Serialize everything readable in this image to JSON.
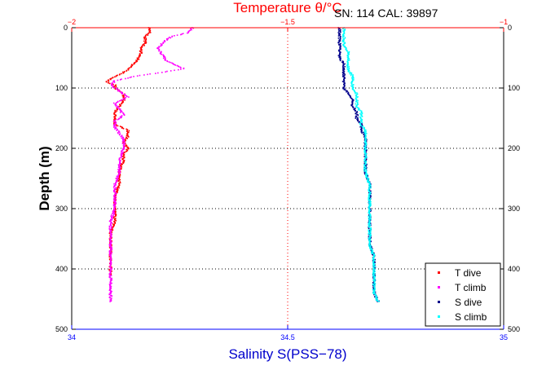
{
  "chart_data": {
    "type": "scatter",
    "title_top": "Temperature θ/°C",
    "info": "SN: 114  CAL: 39897",
    "ylabel": "Depth (m)",
    "xlabel_bottom": "Salinity S(PSS−78)",
    "y_range": [
      0,
      500
    ],
    "y_inverted": true,
    "y_ticks": [
      "0",
      "100",
      "200",
      "300",
      "400",
      "500"
    ],
    "y_tick_values": [
      0,
      100,
      200,
      300,
      400,
      500
    ],
    "x_top_range": [
      -2,
      -1
    ],
    "x_top_ticks": [
      "−2",
      "−1.5",
      "−1"
    ],
    "x_top_tick_values": [
      -2,
      -1.5,
      -1
    ],
    "x_bottom_range": [
      34,
      35
    ],
    "x_bottom_ticks": [
      "34",
      "34.5",
      "35"
    ],
    "x_bottom_tick_values": [
      34,
      34.5,
      35
    ],
    "grid": true,
    "legend_position": "bottom-right",
    "colors": {
      "t_dive": "#ff0000",
      "t_climb": "#ff00ff",
      "s_dive": "#00008b",
      "s_climb": "#00ffff",
      "top_axis": "#ff0000",
      "bottom_axis": "#0000ff"
    },
    "series": [
      {
        "name": "T dive",
        "axis": "top",
        "color": "#ff0000",
        "points": [
          [
            0,
            -1.82
          ],
          [
            8,
            -1.82
          ],
          [
            15,
            -1.83
          ],
          [
            25,
            -1.83
          ],
          [
            35,
            -1.84
          ],
          [
            45,
            -1.84
          ],
          [
            55,
            -1.85
          ],
          [
            62,
            -1.86
          ],
          [
            70,
            -1.87
          ],
          [
            78,
            -1.89
          ],
          [
            85,
            -1.91
          ],
          [
            90,
            -1.92
          ],
          [
            95,
            -1.9
          ],
          [
            100,
            -1.9
          ],
          [
            110,
            -1.88
          ],
          [
            120,
            -1.88
          ],
          [
            130,
            -1.89
          ],
          [
            140,
            -1.9
          ],
          [
            150,
            -1.9
          ],
          [
            160,
            -1.9
          ],
          [
            170,
            -1.87
          ],
          [
            180,
            -1.87
          ],
          [
            190,
            -1.88
          ],
          [
            200,
            -1.87
          ],
          [
            210,
            -1.88
          ],
          [
            220,
            -1.88
          ],
          [
            240,
            -1.89
          ],
          [
            260,
            -1.89
          ],
          [
            280,
            -1.9
          ],
          [
            300,
            -1.9
          ],
          [
            320,
            -1.9
          ],
          [
            340,
            -1.91
          ],
          [
            360,
            -1.91
          ],
          [
            380,
            -1.91
          ],
          [
            400,
            -1.91
          ],
          [
            410,
            -1.91
          ]
        ]
      },
      {
        "name": "T climb",
        "axis": "top",
        "color": "#ff00ff",
        "points": [
          [
            0,
            -1.72
          ],
          [
            8,
            -1.73
          ],
          [
            15,
            -1.77
          ],
          [
            25,
            -1.79
          ],
          [
            35,
            -1.8
          ],
          [
            45,
            -1.79
          ],
          [
            55,
            -1.78
          ],
          [
            62,
            -1.76
          ],
          [
            68,
            -1.74
          ],
          [
            75,
            -1.8
          ],
          [
            80,
            -1.85
          ],
          [
            88,
            -1.9
          ],
          [
            95,
            -1.91
          ],
          [
            105,
            -1.89
          ],
          [
            115,
            -1.87
          ],
          [
            125,
            -1.9
          ],
          [
            135,
            -1.89
          ],
          [
            145,
            -1.88
          ],
          [
            155,
            -1.9
          ],
          [
            165,
            -1.9
          ],
          [
            175,
            -1.89
          ],
          [
            185,
            -1.88
          ],
          [
            200,
            -1.88
          ],
          [
            220,
            -1.89
          ],
          [
            240,
            -1.89
          ],
          [
            260,
            -1.9
          ],
          [
            280,
            -1.9
          ],
          [
            300,
            -1.9
          ],
          [
            320,
            -1.91
          ],
          [
            340,
            -1.91
          ],
          [
            360,
            -1.91
          ],
          [
            380,
            -1.91
          ],
          [
            400,
            -1.91
          ],
          [
            420,
            -1.91
          ],
          [
            440,
            -1.91
          ],
          [
            455,
            -1.91
          ]
        ]
      },
      {
        "name": "S dive",
        "axis": "bottom",
        "color": "#00008b",
        "points": [
          [
            0,
            34.62
          ],
          [
            10,
            34.62
          ],
          [
            20,
            34.62
          ],
          [
            30,
            34.62
          ],
          [
            40,
            34.62
          ],
          [
            50,
            34.62
          ],
          [
            60,
            34.63
          ],
          [
            70,
            34.63
          ],
          [
            80,
            34.63
          ],
          [
            90,
            34.63
          ],
          [
            100,
            34.63
          ],
          [
            110,
            34.64
          ],
          [
            120,
            34.65
          ],
          [
            130,
            34.65
          ],
          [
            140,
            34.66
          ],
          [
            150,
            34.66
          ],
          [
            160,
            34.67
          ],
          [
            170,
            34.67
          ],
          [
            180,
            34.68
          ],
          [
            190,
            34.68
          ],
          [
            200,
            34.68
          ],
          [
            220,
            34.68
          ],
          [
            240,
            34.68
          ],
          [
            260,
            34.69
          ],
          [
            280,
            34.69
          ],
          [
            300,
            34.69
          ],
          [
            320,
            34.69
          ],
          [
            340,
            34.69
          ],
          [
            360,
            34.69
          ],
          [
            380,
            34.7
          ],
          [
            400,
            34.7
          ],
          [
            420,
            34.7
          ],
          [
            440,
            34.7
          ],
          [
            455,
            34.71
          ]
        ]
      },
      {
        "name": "S climb",
        "axis": "bottom",
        "color": "#00ffff",
        "points": [
          [
            0,
            34.63
          ],
          [
            10,
            34.63
          ],
          [
            20,
            34.63
          ],
          [
            30,
            34.63
          ],
          [
            40,
            34.64
          ],
          [
            50,
            34.64
          ],
          [
            60,
            34.64
          ],
          [
            70,
            34.64
          ],
          [
            80,
            34.65
          ],
          [
            90,
            34.65
          ],
          [
            100,
            34.65
          ],
          [
            110,
            34.66
          ],
          [
            120,
            34.66
          ],
          [
            130,
            34.66
          ],
          [
            140,
            34.67
          ],
          [
            150,
            34.67
          ],
          [
            160,
            34.67
          ],
          [
            170,
            34.68
          ],
          [
            180,
            34.68
          ],
          [
            190,
            34.68
          ],
          [
            200,
            34.68
          ],
          [
            220,
            34.68
          ],
          [
            240,
            34.68
          ],
          [
            260,
            34.69
          ],
          [
            280,
            34.69
          ],
          [
            300,
            34.69
          ],
          [
            320,
            34.69
          ],
          [
            340,
            34.69
          ],
          [
            360,
            34.69
          ],
          [
            380,
            34.7
          ],
          [
            400,
            34.7
          ],
          [
            420,
            34.7
          ],
          [
            440,
            34.7
          ],
          [
            455,
            34.71
          ]
        ]
      }
    ]
  }
}
